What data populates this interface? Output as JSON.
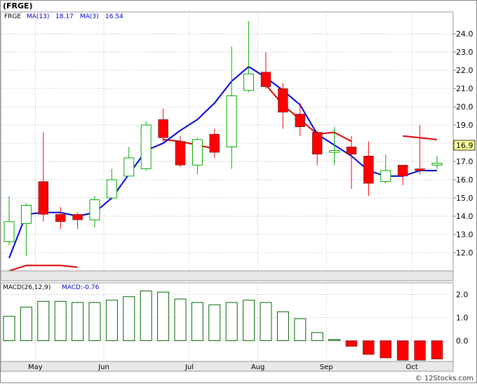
{
  "header": {
    "ticker": "(FRGE)",
    "legend_symbol": "FRGE",
    "ma13_label": "MA(13)",
    "ma13_value": "18.17",
    "ma3_label": "MA(3)",
    "ma3_value": "16.54"
  },
  "macd_header": {
    "label": "MACD(26,12,9)",
    "value_label": "MACD:-0.76"
  },
  "last_price_tag": "16.9",
  "watermark": "© 12Stocks.com",
  "colors": {
    "up_candle": "#00aa00",
    "down_candle": "#ff0000",
    "ma13_line": "#e00000",
    "ma3_line": "#0000dd",
    "macd_positive": "#006600",
    "macd_negative": "#ff0000",
    "grid": "#c8c8c8",
    "header_text_blue": "#0000cc"
  },
  "chart_data": [
    {
      "type": "candlestick",
      "title": "(FRGE)",
      "month_labels": [
        {
          "label": "May",
          "index": 1
        },
        {
          "label": "Jun",
          "index": 5
        },
        {
          "label": "Jul",
          "index": 10
        },
        {
          "label": "Aug",
          "index": 14
        },
        {
          "label": "Sep",
          "index": 18
        },
        {
          "label": "Oct",
          "index": 23
        }
      ],
      "y_ticks": [
        12.0,
        13.0,
        14.0,
        15.0,
        16.0,
        17.0,
        18.0,
        19.0,
        20.0,
        21.0,
        22.0,
        23.0,
        24.0
      ],
      "ylim": [
        11.0,
        25.2
      ],
      "grid": true,
      "candles": [
        {
          "o": 12.6,
          "h": 15.1,
          "l": 12.4,
          "c": 13.7
        },
        {
          "o": 13.6,
          "h": 14.7,
          "l": 11.8,
          "c": 14.6
        },
        {
          "o": 15.9,
          "h": 18.6,
          "l": 13.7,
          "c": 14.1
        },
        {
          "o": 14.1,
          "h": 14.5,
          "l": 13.3,
          "c": 13.7
        },
        {
          "o": 14.1,
          "h": 14.2,
          "l": 13.3,
          "c": 13.8
        },
        {
          "o": 13.8,
          "h": 15.1,
          "l": 13.4,
          "c": 14.9
        },
        {
          "o": 15.0,
          "h": 16.6,
          "l": 14.9,
          "c": 16.0
        },
        {
          "o": 16.2,
          "h": 17.8,
          "l": 16.2,
          "c": 17.2
        },
        {
          "o": 16.6,
          "h": 19.2,
          "l": 16.5,
          "c": 19.0
        },
        {
          "o": 19.3,
          "h": 19.9,
          "l": 18.1,
          "c": 18.3
        },
        {
          "o": 18.1,
          "h": 18.4,
          "l": 16.7,
          "c": 16.8
        },
        {
          "o": 16.8,
          "h": 18.3,
          "l": 16.3,
          "c": 18.2
        },
        {
          "o": 18.5,
          "h": 18.8,
          "l": 17.2,
          "c": 17.5
        },
        {
          "o": 17.8,
          "h": 23.3,
          "l": 16.6,
          "c": 20.6
        },
        {
          "o": 20.9,
          "h": 24.7,
          "l": 20.8,
          "c": 21.8
        },
        {
          "o": 21.9,
          "h": 23.0,
          "l": 21.0,
          "c": 21.1
        },
        {
          "o": 21.0,
          "h": 21.3,
          "l": 18.8,
          "c": 19.7
        },
        {
          "o": 19.6,
          "h": 20.2,
          "l": 18.4,
          "c": 18.9
        },
        {
          "o": 18.6,
          "h": 18.7,
          "l": 16.8,
          "c": 17.4
        },
        {
          "o": 17.5,
          "h": 18.9,
          "l": 16.8,
          "c": 17.6
        },
        {
          "o": 17.8,
          "h": 18.4,
          "l": 15.5,
          "c": 17.4
        },
        {
          "o": 17.3,
          "h": 18.1,
          "l": 15.1,
          "c": 15.8
        },
        {
          "o": 15.9,
          "h": 17.4,
          "l": 15.8,
          "c": 16.5
        },
        {
          "o": 16.8,
          "h": 16.8,
          "l": 15.7,
          "c": 16.2
        },
        {
          "o": 16.6,
          "h": 19.0,
          "l": 16.3,
          "c": 16.5
        },
        {
          "o": 16.8,
          "h": 17.3,
          "l": 16.6,
          "c": 16.9
        }
      ],
      "series": [
        {
          "name": "MA(13)",
          "values": [
            11.0,
            11.3,
            11.3,
            11.3,
            11.2,
            null,
            null,
            null,
            null,
            18.2,
            18.1,
            17.9,
            17.7,
            null,
            null,
            21.2,
            20.1,
            19.3,
            18.5,
            18.6,
            18.1,
            null,
            null,
            18.4,
            18.3,
            18.2
          ],
          "note_x": [
            0,
            1,
            2,
            3,
            4,
            9,
            10,
            11,
            12,
            15,
            16,
            17,
            18,
            19,
            20,
            23,
            24,
            25
          ]
        },
        {
          "name": "MA(3)",
          "values": [
            11.7,
            14.1,
            14.2,
            14.2,
            14.0,
            14.2,
            15.0,
            16.3,
            17.6,
            18.0,
            18.7,
            19.3,
            20.2,
            21.4,
            22.2,
            21.6,
            20.9,
            20.1,
            18.5,
            17.9,
            17.3,
            16.5,
            16.2,
            16.2,
            16.5,
            16.5
          ]
        }
      ]
    },
    {
      "type": "bar",
      "title": "MACD(26,12,9)",
      "x_index_labels": [
        {
          "label": "May",
          "index": 1
        },
        {
          "label": "Jun",
          "index": 5
        },
        {
          "label": "Jul",
          "index": 10
        },
        {
          "label": "Aug",
          "index": 14
        },
        {
          "label": "Sep",
          "index": 18
        },
        {
          "label": "Oct",
          "index": 23
        }
      ],
      "y_ticks": [
        2.0,
        1.0,
        0.0
      ],
      "ylim": [
        -0.9,
        2.5
      ],
      "values": [
        1.05,
        1.45,
        1.7,
        1.7,
        1.65,
        1.65,
        1.75,
        1.9,
        2.15,
        2.1,
        1.8,
        1.65,
        1.55,
        1.65,
        1.75,
        1.65,
        1.25,
        0.95,
        0.35,
        0.05,
        -0.25,
        -0.6,
        -0.75,
        -0.85,
        -0.85,
        -0.8
      ]
    }
  ]
}
